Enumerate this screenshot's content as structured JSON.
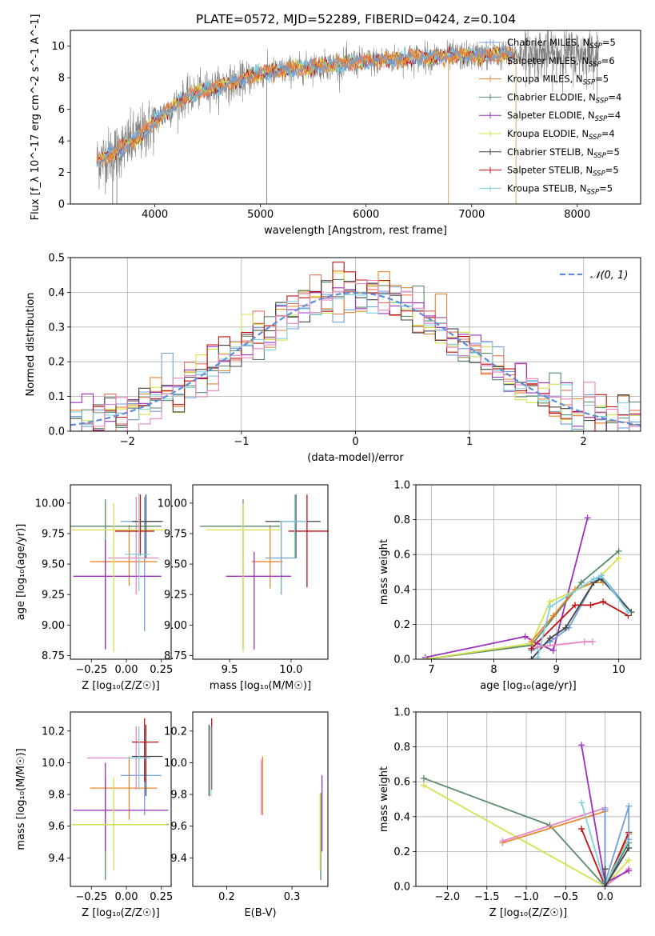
{
  "title": "PLATE=0572, MJD=52289, FIBERID=0424, z=0.104",
  "colors": {
    "chabrier_miles": "#6fa0dd",
    "salpeter_miles": "#e8735a",
    "kroupa_miles": "#e8872e",
    "chabrier_elodie": "#5a8a6a",
    "salpeter_elodie": "#9b30c0",
    "kroupa_elodie": "#d4e24a",
    "chabrier_stelib": "#444444",
    "salpeter_stelib": "#c01010",
    "kroupa_stelib": "#7fd0e0",
    "data": "#7f7f7f",
    "gaussian": "#5b8ed6",
    "pink": "#e884c0"
  },
  "chart_data": [
    {
      "id": "spectrum",
      "type": "line",
      "title": "PLATE=0572, MJD=52289, FIBERID=0424, z=0.104",
      "xlabel": "wavelength [Angstrom, rest frame]",
      "ylabel": "Flux [f_λ 10^-17 erg cm^-2 s^-1 A^-1]",
      "xlim": [
        3200,
        8600
      ],
      "ylim": [
        0,
        11
      ],
      "xticks": [
        "4000",
        "5000",
        "6000",
        "7000",
        "8000"
      ],
      "yticks": [
        "0",
        "2",
        "4",
        "6",
        "8",
        "10"
      ],
      "grid": false,
      "legend_position": "upper right",
      "legend": [
        {
          "label": "Chabrier MILES, N",
          "sub": "SSP",
          "tail": "=5"
        },
        {
          "label": "Salpeter MILES, N",
          "sub": "SSP",
          "tail": "=6"
        },
        {
          "label": "Kroupa MILES, N",
          "sub": "SSP",
          "tail": "=5"
        },
        {
          "label": "Chabrier ELODIE, N",
          "sub": "SSP",
          "tail": "=4"
        },
        {
          "label": "Salpeter ELODIE, N",
          "sub": "SSP",
          "tail": "=4"
        },
        {
          "label": "Kroupa ELODIE, N",
          "sub": "SSP",
          "tail": "=4"
        },
        {
          "label": "Chabrier STELIB, N",
          "sub": "SSP",
          "tail": "=5"
        },
        {
          "label": "Salpeter STELIB, N",
          "sub": "SSP",
          "tail": "=5"
        },
        {
          "label": "Kroupa STELIB, N",
          "sub": "SSP",
          "tail": "=5"
        }
      ],
      "model_continuum": {
        "x": [
          3450,
          3600,
          3800,
          4000,
          4100,
          4300,
          4500,
          4800,
          5000,
          5200,
          5500,
          5800,
          6000,
          6500,
          7000,
          7400
        ],
        "y": [
          2.7,
          3.2,
          4.0,
          5.2,
          5.8,
          6.8,
          7.3,
          7.8,
          8.3,
          8.4,
          8.7,
          8.9,
          9.0,
          9.3,
          9.4,
          9.5
        ]
      }
    },
    {
      "id": "residuals",
      "type": "histogram",
      "xlabel": "(data-model)/error",
      "ylabel": "Normed distribution",
      "xlim": [
        -2.5,
        2.5
      ],
      "ylim": [
        0,
        0.5
      ],
      "xticks": [
        "−2",
        "−1",
        "0",
        "1",
        "2"
      ],
      "yticks": [
        "0.0",
        "0.1",
        "0.2",
        "0.3",
        "0.4",
        "0.5"
      ],
      "grid": true,
      "legend_position": "upper right",
      "legend": [
        "𝒩(0, 1)"
      ],
      "gaussian": {
        "mean": 0,
        "sigma": 1
      },
      "bin_width": 0.1
    },
    {
      "id": "age_vs_Z",
      "type": "errorbar",
      "xlabel": "Z [log₁₀(Z/Z☉)]",
      "ylabel": "age  [log₁₀(age/yr)]",
      "xlim": [
        -0.4,
        0.32
      ],
      "ylim": [
        8.72,
        10.15
      ],
      "xticks": [
        "−0.25",
        "0.00",
        "0.25"
      ],
      "yticks": [
        "8.75",
        "9.00",
        "9.25",
        "9.50",
        "9.75",
        "10.00"
      ],
      "points": [
        {
          "x": 0.13,
          "y": 9.85,
          "xerr": [
            0.17,
            0.12
          ],
          "yerr": [
            0.9,
            0.2
          ],
          "color": "chabrier_miles"
        },
        {
          "x": 0.02,
          "y": 9.52,
          "xerr": [
            0.28,
            0.2
          ],
          "yerr": [
            0.2,
            0.3
          ],
          "color": "kroupa_miles"
        },
        {
          "x": 0.07,
          "y": 9.55,
          "xerr": [
            0.2,
            0.16
          ],
          "yerr": [
            0.3,
            0.5
          ],
          "color": "pink"
        },
        {
          "x": -0.15,
          "y": 9.81,
          "xerr": [
            0.25,
            0.4
          ],
          "yerr": [
            1.0,
            0.22
          ],
          "color": "chabrier_elodie"
        },
        {
          "x": -0.15,
          "y": 9.4,
          "xerr": [
            0.23,
            0.4
          ],
          "yerr": [
            0.6,
            0.3
          ],
          "color": "salpeter_elodie"
        },
        {
          "x": -0.09,
          "y": 9.78,
          "xerr": [
            0.3,
            0.38
          ],
          "yerr": [
            1.0,
            0.22
          ],
          "color": "kroupa_elodie"
        },
        {
          "x": 0.14,
          "y": 9.85,
          "xerr": [
            0.1,
            0.12
          ],
          "yerr": [
            0.3,
            0.22
          ],
          "color": "chabrier_stelib"
        },
        {
          "x": 0.1,
          "y": 9.77,
          "xerr": [
            0.18,
            0.1
          ],
          "yerr": [
            0.2,
            0.3
          ],
          "color": "salpeter_stelib"
        },
        {
          "x": 0.09,
          "y": 9.58,
          "xerr": [
            0.1,
            0.08
          ],
          "yerr": [
            0.3,
            0.5
          ],
          "color": "kroupa_stelib"
        }
      ]
    },
    {
      "id": "age_vs_mass",
      "type": "errorbar",
      "xlabel": "mass [log₁₀(M/M☉)]",
      "ylabel": "",
      "xlim": [
        9.2,
        10.3
      ],
      "ylim": [
        8.72,
        10.15
      ],
      "xticks": [
        "9.5",
        "10.0"
      ],
      "yticks": [
        "8.75",
        "9.00",
        "9.25",
        "9.50",
        "9.75",
        "10.00"
      ],
      "points": [
        {
          "x": 9.92,
          "y": 9.55,
          "xerr": [
            0.13,
            0.12
          ],
          "yerr": [
            0.3,
            0.3
          ],
          "color": "chabrier_miles"
        },
        {
          "x": 9.83,
          "y": 9.52,
          "xerr": [
            0.15,
            0.1
          ],
          "yerr": [
            0.22,
            0.3
          ],
          "color": "kroupa_miles"
        },
        {
          "x": 9.61,
          "y": 9.81,
          "xerr": [
            0.35,
            0.3
          ],
          "yerr": [
            1.0,
            0.22
          ],
          "color": "chabrier_elodie"
        },
        {
          "x": 9.7,
          "y": 9.4,
          "xerr": [
            0.23,
            0.3
          ],
          "yerr": [
            0.6,
            0.2
          ],
          "color": "salpeter_elodie"
        },
        {
          "x": 9.61,
          "y": 9.78,
          "xerr": [
            0.3,
            0.3
          ],
          "yerr": [
            1.0,
            0.22
          ],
          "color": "kroupa_elodie"
        },
        {
          "x": 10.04,
          "y": 9.85,
          "xerr": [
            0.25,
            0.2
          ],
          "yerr": [
            0.3,
            0.22
          ],
          "color": "chabrier_stelib"
        },
        {
          "x": 10.13,
          "y": 9.77,
          "xerr": [
            0.15,
            0.2
          ],
          "yerr": [
            0.46,
            0.3
          ],
          "color": "salpeter_stelib"
        },
        {
          "x": 10.03,
          "y": 9.85,
          "xerr": [
            0.12,
            0.1
          ],
          "yerr": [
            0.3,
            0.22
          ],
          "color": "kroupa_stelib"
        }
      ]
    },
    {
      "id": "weight_vs_age",
      "type": "line",
      "xlabel": "age  [log₁₀(age/yr)]",
      "ylabel": "mass weight",
      "xlim": [
        6.75,
        10.35
      ],
      "ylim": [
        0,
        1
      ],
      "xticks": [
        "7",
        "8",
        "9",
        "10"
      ],
      "yticks": [
        "0.0",
        "0.2",
        "0.4",
        "0.6",
        "0.8",
        "1.0"
      ],
      "grid": true,
      "series": [
        {
          "color": "salpeter_elodie",
          "x": [
            6.9,
            8.5,
            8.7,
            8.95,
            9.5
          ],
          "y": [
            0.01,
            0.13,
            0.09,
            0.05,
            0.81
          ]
        },
        {
          "color": "chabrier_elodie",
          "x": [
            6.9,
            8.6,
            9.4,
            10.0
          ],
          "y": [
            0.0,
            0.08,
            0.44,
            0.62
          ]
        },
        {
          "color": "kroupa_elodie",
          "x": [
            6.9,
            8.6,
            8.9,
            9.6,
            10.0
          ],
          "y": [
            0.0,
            0.09,
            0.33,
            0.44,
            0.58
          ]
        },
        {
          "color": "chabrier_miles",
          "x": [
            8.6,
            8.9,
            9.2,
            9.6,
            9.72,
            10.2
          ],
          "y": [
            0.05,
            0.1,
            0.18,
            0.44,
            0.48,
            0.27
          ]
        },
        {
          "color": "kroupa_miles",
          "x": [
            8.6,
            8.95,
            9.3,
            9.6,
            9.75
          ],
          "y": [
            0.1,
            0.25,
            0.4,
            0.44,
            0.44
          ]
        },
        {
          "color": "salpeter_stelib",
          "x": [
            8.6,
            9.3,
            9.55,
            9.75,
            10.15
          ],
          "y": [
            0.06,
            0.31,
            0.31,
            0.33,
            0.25
          ]
        },
        {
          "color": "chabrier_stelib",
          "x": [
            8.6,
            8.9,
            9.15,
            9.6,
            9.72,
            10.2
          ],
          "y": [
            0.0,
            0.12,
            0.18,
            0.44,
            0.46,
            0.27
          ]
        },
        {
          "color": "kroupa_stelib",
          "x": [
            8.7,
            8.9,
            9.6,
            9.72,
            10.15
          ],
          "y": [
            0.01,
            0.3,
            0.46,
            0.48,
            0.27
          ]
        },
        {
          "color": "pink",
          "x": [
            8.7,
            9.45,
            9.58
          ],
          "y": [
            0.07,
            0.1,
            0.1
          ]
        }
      ]
    },
    {
      "id": "mass_vs_Z",
      "type": "errorbar",
      "xlabel": "Z [log₁₀(Z/Z☉)]",
      "ylabel": "mass [log₁₀(M/M☉)]",
      "xlim": [
        -0.4,
        0.32
      ],
      "ylim": [
        9.22,
        10.32
      ],
      "xticks": [
        "−0.25",
        "0.00",
        "0.25"
      ],
      "yticks": [
        "9.4",
        "9.6",
        "9.8",
        "10.0",
        "10.2"
      ],
      "points": [
        {
          "x": 0.13,
          "y": 9.92,
          "xerr": [
            0.17,
            0.12
          ],
          "yerr": [
            0.25,
            0.3
          ],
          "color": "chabrier_miles"
        },
        {
          "x": 0.02,
          "y": 9.84,
          "xerr": [
            0.28,
            0.2
          ],
          "yerr": [
            0.2,
            0.2
          ],
          "color": "kroupa_miles"
        },
        {
          "x": 0.07,
          "y": 10.03,
          "xerr": [
            0.35,
            0.1
          ],
          "yerr": [
            0.2,
            0.2
          ],
          "color": "pink"
        },
        {
          "x": -0.15,
          "y": 9.61,
          "xerr": [
            0.23,
            0.45
          ],
          "yerr": [
            0.35,
            0.3
          ],
          "color": "chabrier_elodie"
        },
        {
          "x": -0.15,
          "y": 9.7,
          "xerr": [
            0.23,
            0.45
          ],
          "yerr": [
            0.26,
            0.3
          ],
          "color": "salpeter_elodie"
        },
        {
          "x": -0.09,
          "y": 9.61,
          "xerr": [
            0.3,
            0.38
          ],
          "yerr": [
            0.29,
            0.3
          ],
          "color": "kroupa_elodie"
        },
        {
          "x": 0.14,
          "y": 10.04,
          "xerr": [
            0.1,
            0.12
          ],
          "yerr": [
            0.25,
            0.2
          ],
          "color": "chabrier_stelib"
        },
        {
          "x": 0.13,
          "y": 10.13,
          "xerr": [
            0.09,
            0.1
          ],
          "yerr": [
            0.25,
            0.15
          ],
          "color": "salpeter_stelib"
        },
        {
          "x": 0.09,
          "y": 10.03,
          "xerr": [
            0.1,
            0.08
          ],
          "yerr": [
            0.2,
            0.2
          ],
          "color": "kroupa_stelib"
        }
      ]
    },
    {
      "id": "mass_vs_ebv",
      "type": "errorbar",
      "xlabel": "E(B-V)",
      "ylabel": "",
      "xlim": [
        0.148,
        0.355
      ],
      "ylim": [
        9.22,
        10.32
      ],
      "xticks": [
        "0.2",
        "0.3"
      ],
      "yticks": [
        "9.4",
        "9.6",
        "9.8",
        "10.0",
        "10.2"
      ],
      "points": [
        {
          "x": 0.173,
          "y": 10.04,
          "xerr": [
            0,
            0
          ],
          "yerr": [
            0.25,
            0.2
          ],
          "color": "chabrier_stelib"
        },
        {
          "x": 0.177,
          "y": 10.13,
          "xerr": [
            0,
            0
          ],
          "yerr": [
            0.3,
            0.15
          ],
          "color": "salpeter_stelib"
        },
        {
          "x": 0.176,
          "y": 10.03,
          "xerr": [
            0,
            0
          ],
          "yerr": [
            0.24,
            0.2
          ],
          "color": "kroupa_stelib"
        },
        {
          "x": 0.255,
          "y": 9.84,
          "xerr": [
            0,
            0
          ],
          "yerr": [
            0.17,
            0.2
          ],
          "color": "kroupa_miles"
        },
        {
          "x": 0.253,
          "y": 9.92,
          "xerr": [
            0,
            0
          ],
          "yerr": [
            0.25,
            0.1
          ],
          "color": "pink"
        },
        {
          "x": 0.344,
          "y": 9.61,
          "xerr": [
            0,
            0
          ],
          "yerr": [
            0.35,
            0.2
          ],
          "color": "chabrier_elodie"
        },
        {
          "x": 0.346,
          "y": 9.7,
          "xerr": [
            0,
            0
          ],
          "yerr": [
            0.26,
            0.22
          ],
          "color": "salpeter_elodie"
        },
        {
          "x": 0.343,
          "y": 9.61,
          "xerr": [
            0,
            0
          ],
          "yerr": [
            0.29,
            0.2
          ],
          "color": "kroupa_elodie"
        }
      ]
    },
    {
      "id": "weight_vs_Z",
      "type": "line",
      "xlabel": "Z [log₁₀(Z/Z☉)]",
      "ylabel": "mass weight",
      "xlim": [
        -2.4,
        0.45
      ],
      "ylim": [
        0,
        1
      ],
      "xticks": [
        "−2.0",
        "−1.5",
        "−1.0",
        "−0.5",
        "0.0"
      ],
      "yticks": [
        "0.0",
        "0.2",
        "0.4",
        "0.6",
        "0.8",
        "1.0"
      ],
      "grid": true,
      "series": [
        {
          "color": "chabrier_elodie",
          "x": [
            -2.3,
            -0.7,
            0.0,
            0.3
          ],
          "y": [
            0.62,
            0.35,
            0.0,
            0.25
          ]
        },
        {
          "color": "kroupa_elodie",
          "x": [
            -2.3,
            0.0,
            0.3
          ],
          "y": [
            0.58,
            0.0,
            0.15
          ]
        },
        {
          "color": "kroupa_miles",
          "x": [
            -1.3,
            0.0,
            0.0,
            0.3
          ],
          "y": [
            0.25,
            0.43,
            0.0,
            0.3
          ]
        },
        {
          "color": "pink",
          "x": [
            -1.3,
            0.0,
            0.0,
            0.3
          ],
          "y": [
            0.26,
            0.45,
            0.0,
            0.1
          ]
        },
        {
          "color": "salpeter_elodie",
          "x": [
            -0.3,
            0.0,
            0.3
          ],
          "y": [
            0.81,
            0.02,
            0.09
          ]
        },
        {
          "color": "salpeter_stelib",
          "x": [
            -0.3,
            0.0,
            0.3
          ],
          "y": [
            0.33,
            0.0,
            0.31
          ]
        },
        {
          "color": "kroupa_stelib",
          "x": [
            -0.3,
            0.0,
            0.3
          ],
          "y": [
            0.48,
            0.01,
            0.27
          ]
        },
        {
          "color": "chabrier_miles",
          "x": [
            0.0,
            0.0,
            0.3,
            0.3
          ],
          "y": [
            0.44,
            0.02,
            0.46,
            0.27
          ]
        },
        {
          "color": "chabrier_stelib",
          "x": [
            0.0,
            0.0,
            0.3
          ],
          "y": [
            0.1,
            0.0,
            0.22
          ]
        }
      ]
    }
  ]
}
